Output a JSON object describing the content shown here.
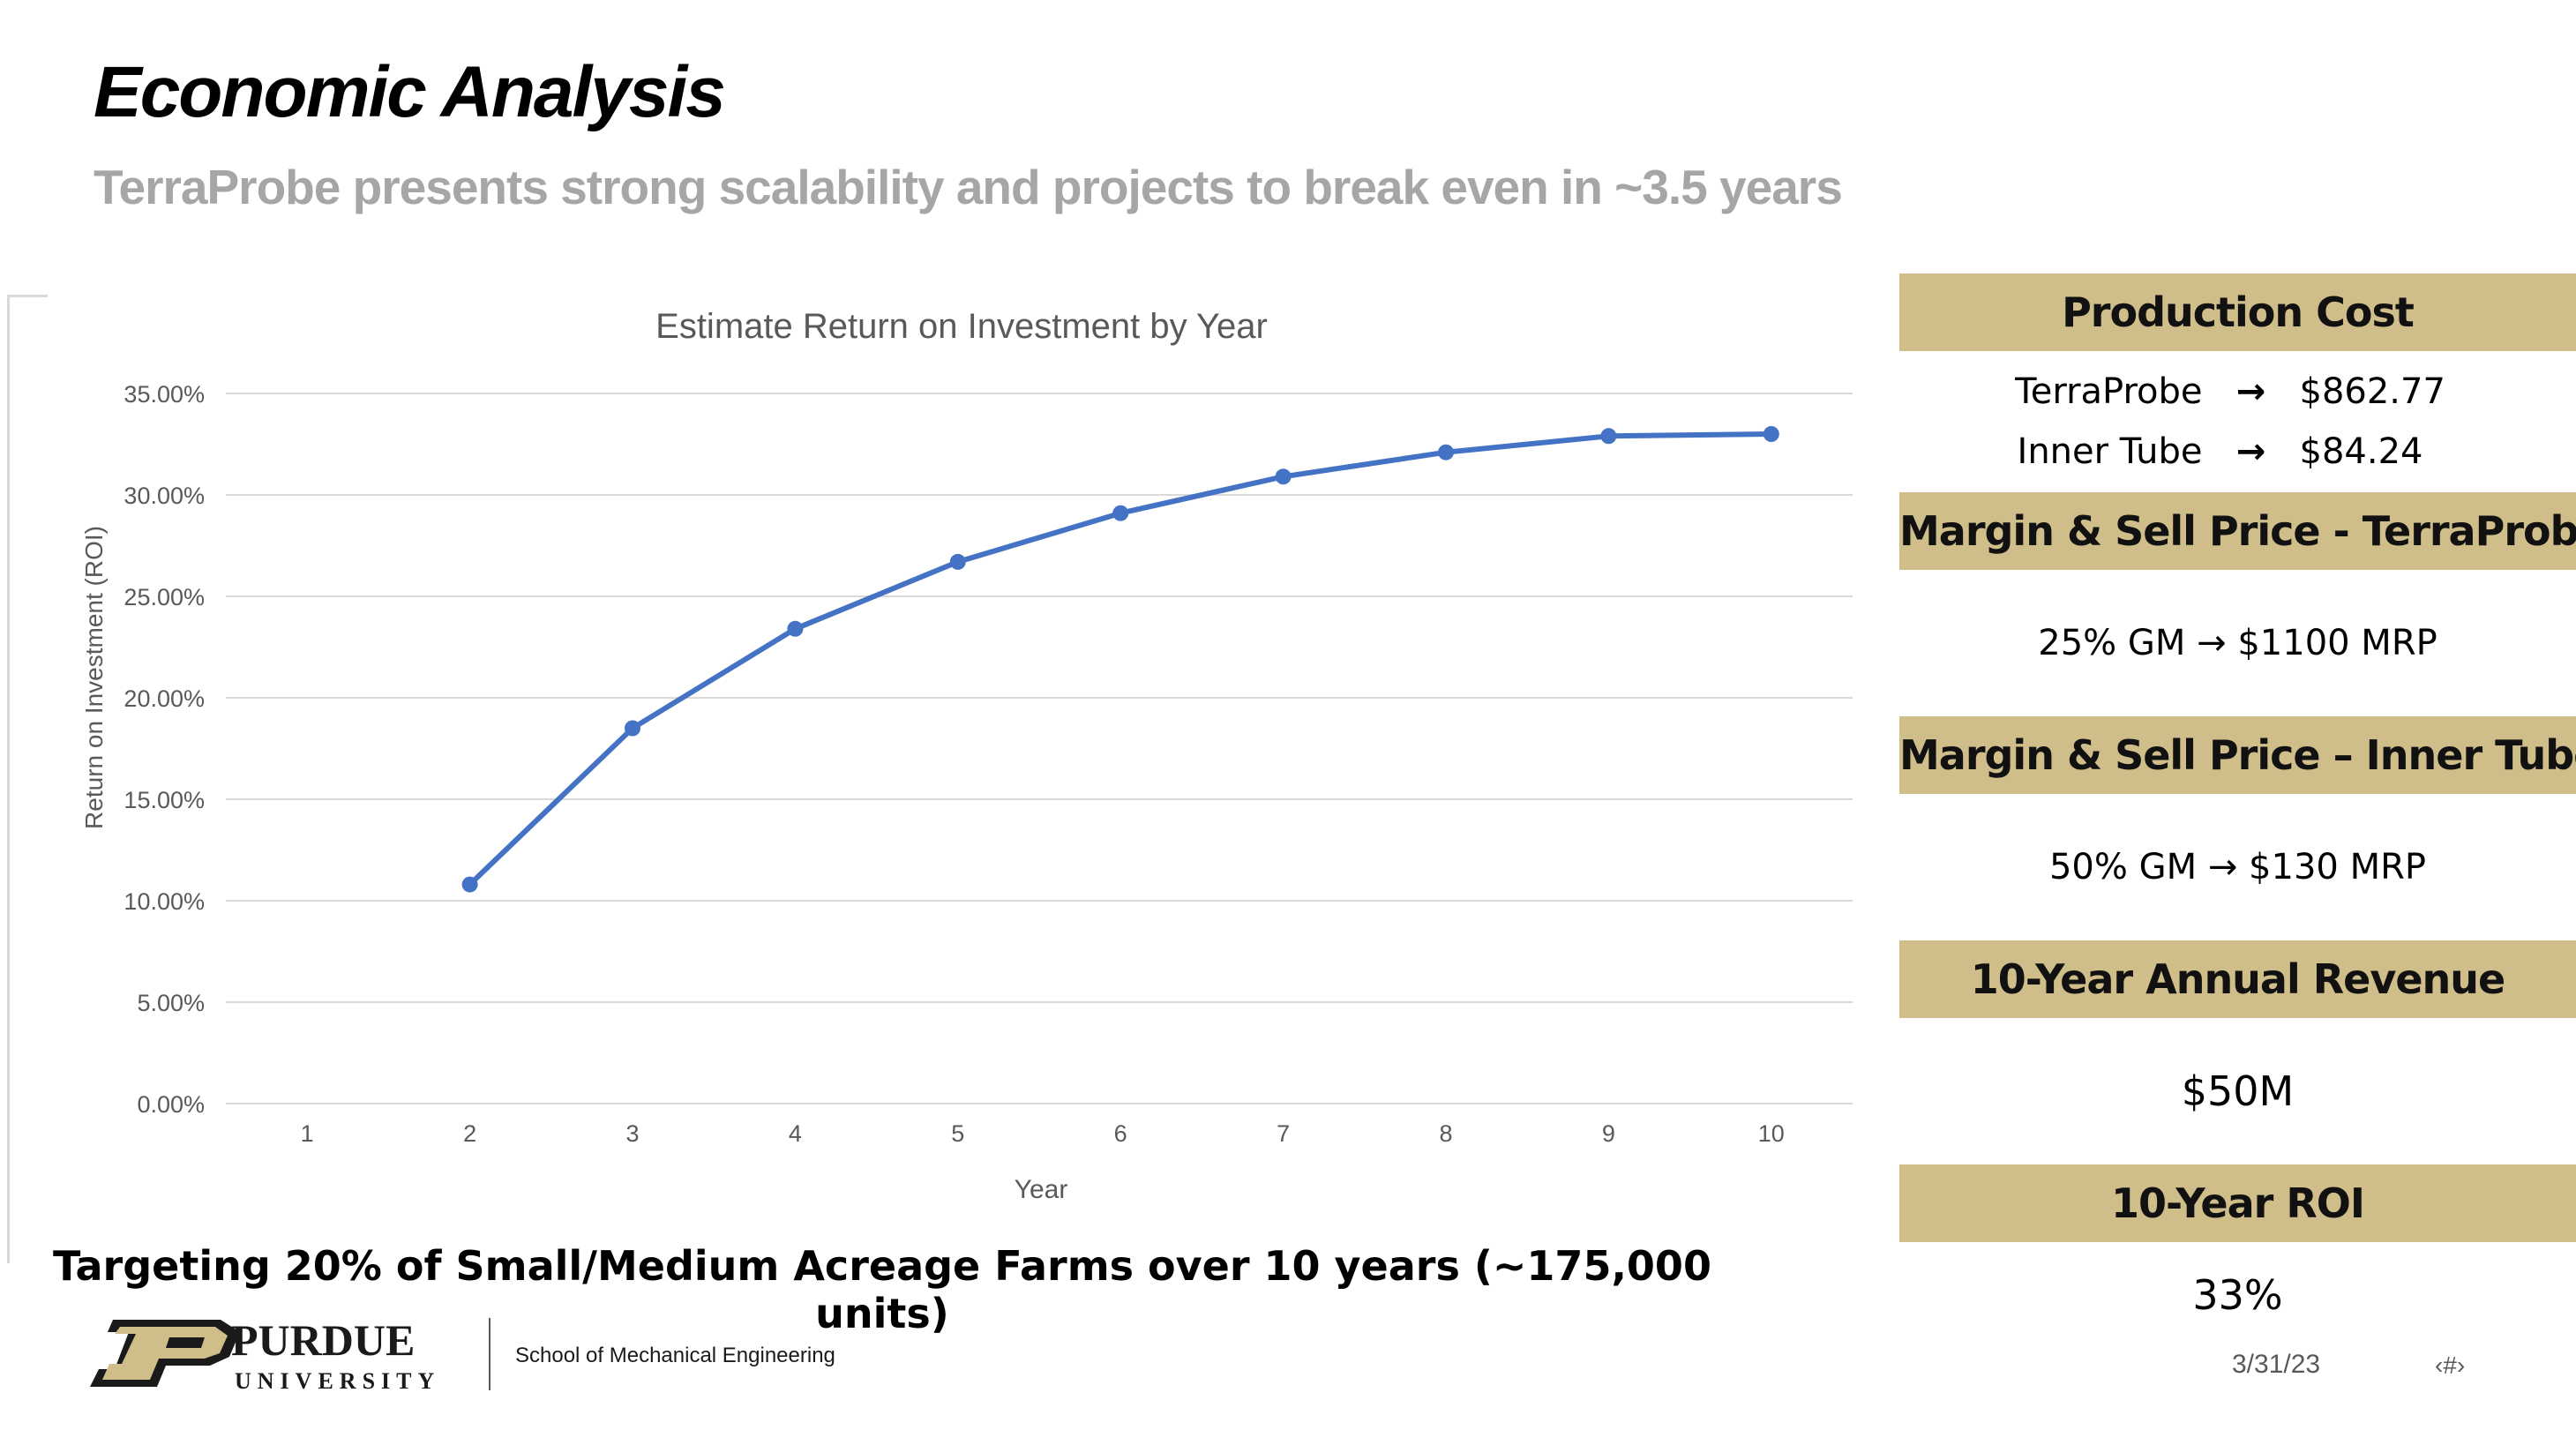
{
  "slide": {
    "title": "Economic Analysis",
    "subtitle": "TerraProbe presents strong scalability and projects to break even in ~3.5 years",
    "target_text": "Targeting 20% of Small/Medium Acreage Farms over 10 years (~175,000 units)",
    "date": "3/31/23",
    "slide_number": "‹#›"
  },
  "footer": {
    "logo_word": "PURDUE",
    "logo_sub": "UNIVERSITY",
    "school": "School of Mechanical Engineering"
  },
  "panel": {
    "production_cost": {
      "header": "Production Cost",
      "items": [
        {
          "label": "TerraProbe",
          "arrow": "→",
          "value": "$862.77"
        },
        {
          "label": "Inner Tube",
          "arrow": "→",
          "value": "$84.24"
        }
      ]
    },
    "margin_terraprobe": {
      "header": "Margin & Sell Price - TerraProbe",
      "text": "25% GM → $1100 MRP"
    },
    "margin_innertube": {
      "header": "Margin & Sell Price – Inner Tube",
      "text": "50% GM → $130 MRP"
    },
    "annual_revenue": {
      "header": "10-Year Annual Revenue",
      "text": "$50M"
    },
    "roi": {
      "header": "10-Year ROI",
      "text": "33%"
    }
  },
  "colors": {
    "accent_gold": "#cfbd8a",
    "line_blue": "#4472c4",
    "subtitle_gray": "#a6a6a6",
    "gridline": "#d9d9d9"
  },
  "chart_data": {
    "type": "line",
    "title": "Estimate Return on Investment by Year",
    "xlabel": "Year",
    "ylabel": "Return on Investment (ROI)",
    "categories": [
      "1",
      "2",
      "3",
      "4",
      "5",
      "6",
      "7",
      "8",
      "9",
      "10"
    ],
    "series": [
      {
        "values": [
          null,
          10.8,
          18.5,
          23.4,
          26.7,
          29.1,
          30.9,
          32.1,
          32.9,
          33.0
        ]
      }
    ],
    "ylim": [
      0,
      35
    ],
    "yticks": [
      "0.00%",
      "5.00%",
      "10.00%",
      "15.00%",
      "20.00%",
      "25.00%",
      "30.00%",
      "35.00%"
    ],
    "ytick_values": [
      0,
      5,
      10,
      15,
      20,
      25,
      30,
      35
    ],
    "grid": true,
    "legend": "none"
  }
}
